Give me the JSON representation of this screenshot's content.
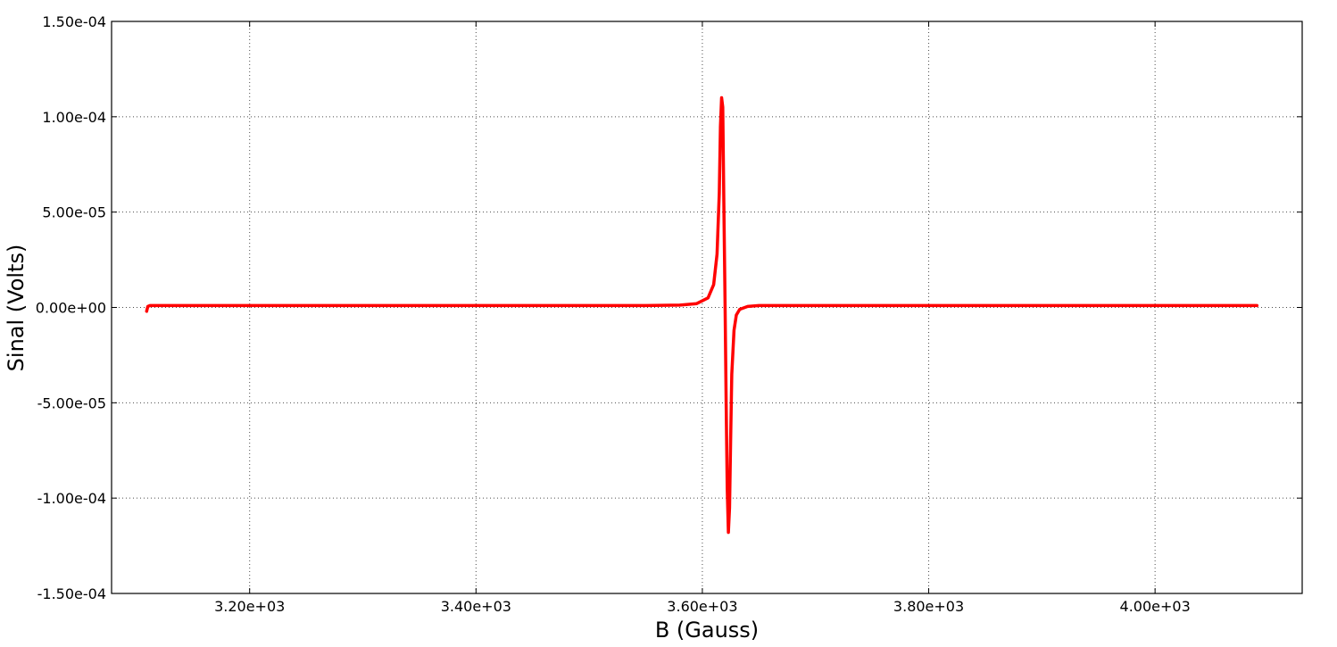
{
  "chart_data": {
    "type": "line",
    "title": "",
    "xlabel": "B (Gauss)",
    "ylabel": "Sinal (Volts)",
    "xlim": [
      3078,
      4130
    ],
    "ylim": [
      -0.00015,
      0.00015
    ],
    "grid": true,
    "x_ticks": [
      {
        "value": 3200,
        "label": "3.20e+03"
      },
      {
        "value": 3400,
        "label": "3.40e+03"
      },
      {
        "value": 3600,
        "label": "3.60e+03"
      },
      {
        "value": 3800,
        "label": "3.80e+03"
      },
      {
        "value": 4000,
        "label": "4.00e+03"
      }
    ],
    "y_ticks": [
      {
        "value": 0.00015,
        "label": "1.50e-04"
      },
      {
        "value": 0.0001,
        "label": "1.00e-04"
      },
      {
        "value": 5e-05,
        "label": "5.00e-05"
      },
      {
        "value": 0,
        "label": "0.00e+00"
      },
      {
        "value": -5e-05,
        "label": "-5.00e-05"
      },
      {
        "value": -0.0001,
        "label": "-1.00e-04"
      },
      {
        "value": -0.00015,
        "label": "-1.50e-04"
      }
    ],
    "series": [
      {
        "color": "#ff0000",
        "x": [
          3109,
          3110,
          3112,
          3150,
          3200,
          3300,
          3400,
          3500,
          3550,
          3580,
          3595,
          3605,
          3610,
          3613,
          3615,
          3616,
          3617,
          3618,
          3619,
          3620,
          3621,
          3622,
          3623,
          3624,
          3625,
          3626,
          3628,
          3630,
          3633,
          3640,
          3650,
          3700,
          3800,
          3900,
          4000,
          4090
        ],
        "y": [
          -2e-06,
          5e-07,
          1e-06,
          1e-06,
          1e-06,
          1e-06,
          1e-06,
          1e-06,
          1e-06,
          1.2e-06,
          2e-06,
          5e-06,
          1.2e-05,
          2.8e-05,
          6e-05,
          9.5e-05,
          0.00011,
          0.000105,
          5.5e-05,
          5e-06,
          -5e-05,
          -9.5e-05,
          -0.000118,
          -0.000105,
          -7e-05,
          -3.5e-05,
          -1.2e-05,
          -4e-06,
          -1e-06,
          5e-07,
          1e-06,
          1e-06,
          1e-06,
          1e-06,
          1e-06,
          1e-06
        ]
      }
    ]
  }
}
